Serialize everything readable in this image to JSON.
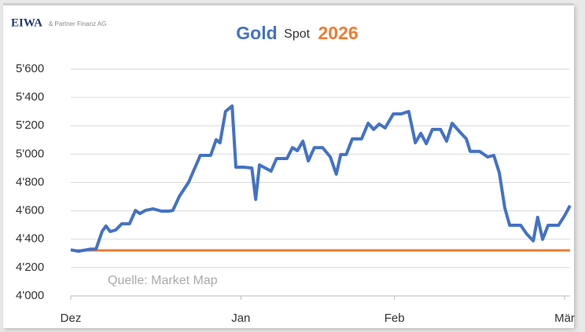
{
  "chart_data": {
    "type": "line",
    "logo": {
      "name": "EIWA",
      "subtitle": "& Partner Finanz AG"
    },
    "title_parts": [
      "Gold",
      "Spot",
      "2026"
    ],
    "source": "Quelle: Market Map",
    "x": [
      0,
      1.4,
      3.6,
      4.6,
      5.7,
      6.4,
      7.2,
      8.2,
      9.3,
      10.7,
      11.8,
      12.6,
      13.6,
      15.0,
      16.5,
      17.9,
      18.6,
      19.8,
      21.5,
      23.6,
      25.5,
      26.5,
      27.2,
      28.2,
      29.4,
      30.1,
      31.5,
      33.0,
      33.7,
      34.4,
      36.5,
      37.5,
      39.4,
      40.4,
      41.3,
      42.3,
      43.3,
      44.4,
      45.9,
      47.3,
      48.4,
      49.2,
      50.2,
      51.3,
      53.0,
      54.2,
      55.2,
      56.2,
      57.3,
      58.8,
      60.2,
      61.6,
      62.8,
      63.8,
      64.8,
      65.9,
      67.4,
      68.5,
      69.5,
      70.9,
      72.1,
      72.8,
      74.5,
      76.0,
      77.1,
      78.1,
      79.1,
      80.0,
      81.0,
      82.0,
      83.1,
      84.3,
      85.1,
      86.0,
      87.0,
      88.9,
      90.0,
      91.0
    ],
    "series": [
      {
        "color": "#4472c4",
        "values": [
          4325,
          4315,
          4330,
          4330,
          4454,
          4493,
          4454,
          4465,
          4509,
          4509,
          4603,
          4581,
          4603,
          4614,
          4598,
          4598,
          4603,
          4703,
          4803,
          4991,
          4991,
          5102,
          5080,
          5301,
          5340,
          4908,
          4908,
          4902,
          4681,
          4924,
          4880,
          4969,
          4969,
          5046,
          5024,
          5091,
          4952,
          5046,
          5046,
          4980,
          4858,
          4997,
          4997,
          5107,
          5107,
          5218,
          5174,
          5212,
          5185,
          5284,
          5284,
          5301,
          5080,
          5146,
          5074,
          5174,
          5174,
          5091,
          5218,
          5157,
          5107,
          5019,
          5019,
          4980,
          4991,
          4869,
          4620,
          4498,
          4498,
          4498,
          4437,
          4388,
          4554,
          4399,
          4498,
          4498,
          4565,
          4637
        ]
      }
    ],
    "reference_line": {
      "value": 4321,
      "color": "#ed7d31"
    },
    "xlim": [
      0,
      91
    ],
    "xticks": [
      {
        "value": 0,
        "label": "Dez"
      },
      {
        "value": 31,
        "label": "Jan"
      },
      {
        "value": 59,
        "label": "Feb"
      },
      {
        "value": 90,
        "label": "Mär"
      }
    ],
    "ylim": [
      4000,
      5600
    ],
    "yticks": [
      {
        "value": 4000,
        "label": "4'000"
      },
      {
        "value": 4200,
        "label": "4'200"
      },
      {
        "value": 4400,
        "label": "4'400"
      },
      {
        "value": 4600,
        "label": "4'600"
      },
      {
        "value": 4800,
        "label": "4'800"
      },
      {
        "value": 5000,
        "label": "5'000"
      },
      {
        "value": 5200,
        "label": "5'200"
      },
      {
        "value": 5400,
        "label": "5'400"
      },
      {
        "value": 5600,
        "label": "5'600"
      }
    ],
    "grid": true
  }
}
